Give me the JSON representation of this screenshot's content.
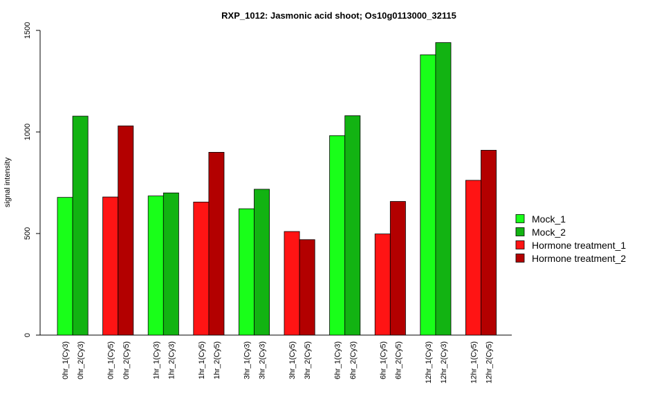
{
  "chart_data": {
    "type": "bar",
    "title": "RXP_1012: Jasmonic acid shoot; Os10g0113000_32115",
    "xlabel": "",
    "ylabel": "signal intensity",
    "ylim": [
      0,
      1500
    ],
    "yticks": [
      0,
      500,
      1000,
      1500
    ],
    "grid": false,
    "legend_position": "right",
    "series_colors": {
      "Mock_1": "#19ff19",
      "Mock_2": "#12b312",
      "Hormone treatment_1": "#ff1414",
      "Hormone treatment_2": "#b30000"
    },
    "legend": [
      "Mock_1",
      "Mock_2",
      "Hormone treatment_1",
      "Hormone treatment_2"
    ],
    "bars": [
      {
        "label": "0hr_1(Cy3)",
        "value": 678,
        "series": "Mock_1"
      },
      {
        "label": "0hr_2(Cy3)",
        "value": 1078,
        "series": "Mock_2"
      },
      {
        "label": "0hr_1(Cy5)",
        "value": 680,
        "series": "Hormone treatment_1"
      },
      {
        "label": "0hr_2(Cy5)",
        "value": 1030,
        "series": "Hormone treatment_2"
      },
      {
        "label": "1hr_1(Cy3)",
        "value": 685,
        "series": "Mock_1"
      },
      {
        "label": "1hr_2(Cy3)",
        "value": 700,
        "series": "Mock_2"
      },
      {
        "label": "1hr_1(Cy5)",
        "value": 655,
        "series": "Hormone treatment_1"
      },
      {
        "label": "1hr_2(Cy5)",
        "value": 900,
        "series": "Hormone treatment_2"
      },
      {
        "label": "3hr_1(Cy3)",
        "value": 622,
        "series": "Mock_1"
      },
      {
        "label": "3hr_2(Cy3)",
        "value": 718,
        "series": "Mock_2"
      },
      {
        "label": "3hr_1(Cy5)",
        "value": 510,
        "series": "Hormone treatment_1"
      },
      {
        "label": "3hr_2(Cy5)",
        "value": 470,
        "series": "Hormone treatment_2"
      },
      {
        "label": "6hr_1(Cy3)",
        "value": 982,
        "series": "Mock_1"
      },
      {
        "label": "6hr_2(Cy3)",
        "value": 1080,
        "series": "Mock_2"
      },
      {
        "label": "6hr_1(Cy5)",
        "value": 498,
        "series": "Hormone treatment_1"
      },
      {
        "label": "6hr_2(Cy5)",
        "value": 658,
        "series": "Hormone treatment_2"
      },
      {
        "label": "12hr_1(Cy3)",
        "value": 1380,
        "series": "Mock_1"
      },
      {
        "label": "12hr_2(Cy3)",
        "value": 1440,
        "series": "Mock_2"
      },
      {
        "label": "12hr_1(Cy5)",
        "value": 762,
        "series": "Hormone treatment_1"
      },
      {
        "label": "12hr_2(Cy5)",
        "value": 910,
        "series": "Hormone treatment_2"
      }
    ]
  }
}
